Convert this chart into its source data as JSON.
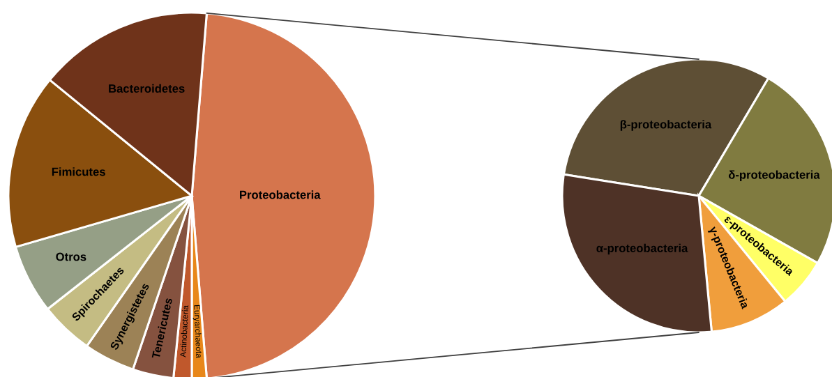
{
  "chart_data": [
    {
      "type": "pie",
      "categories": [
        "Proteobacteria",
        "Euryarchaeota",
        "Actinobacteria",
        "Tenericutes",
        "Synergistetes",
        "Spirochaetes",
        "Otros",
        "Fimicutes",
        "Bacteroidetes"
      ],
      "values": [
        47.4,
        1.3,
        1.6,
        3.6,
        4.5,
        4.7,
        6.1,
        15.4,
        15.4
      ],
      "colors": [
        "#d5754d",
        "#e8871a",
        "#c0582c",
        "#85523f",
        "#9c8256",
        "#c4bc83",
        "#959f86",
        "#8a4f0e",
        "#6f331a"
      ]
    },
    {
      "type": "pie",
      "categories": [
        "β-proteobacteria",
        "δ-proteobacteria",
        "ε-proteobacteria",
        "γ-proteobacteria",
        "α-proteobacteria"
      ],
      "values": [
        31.0,
        24.7,
        5.9,
        9.4,
        29.0
      ],
      "colors": [
        "#5e4f35",
        "#807b40",
        "#ffff66",
        "#f09e3c",
        "#4e3226"
      ]
    }
  ]
}
